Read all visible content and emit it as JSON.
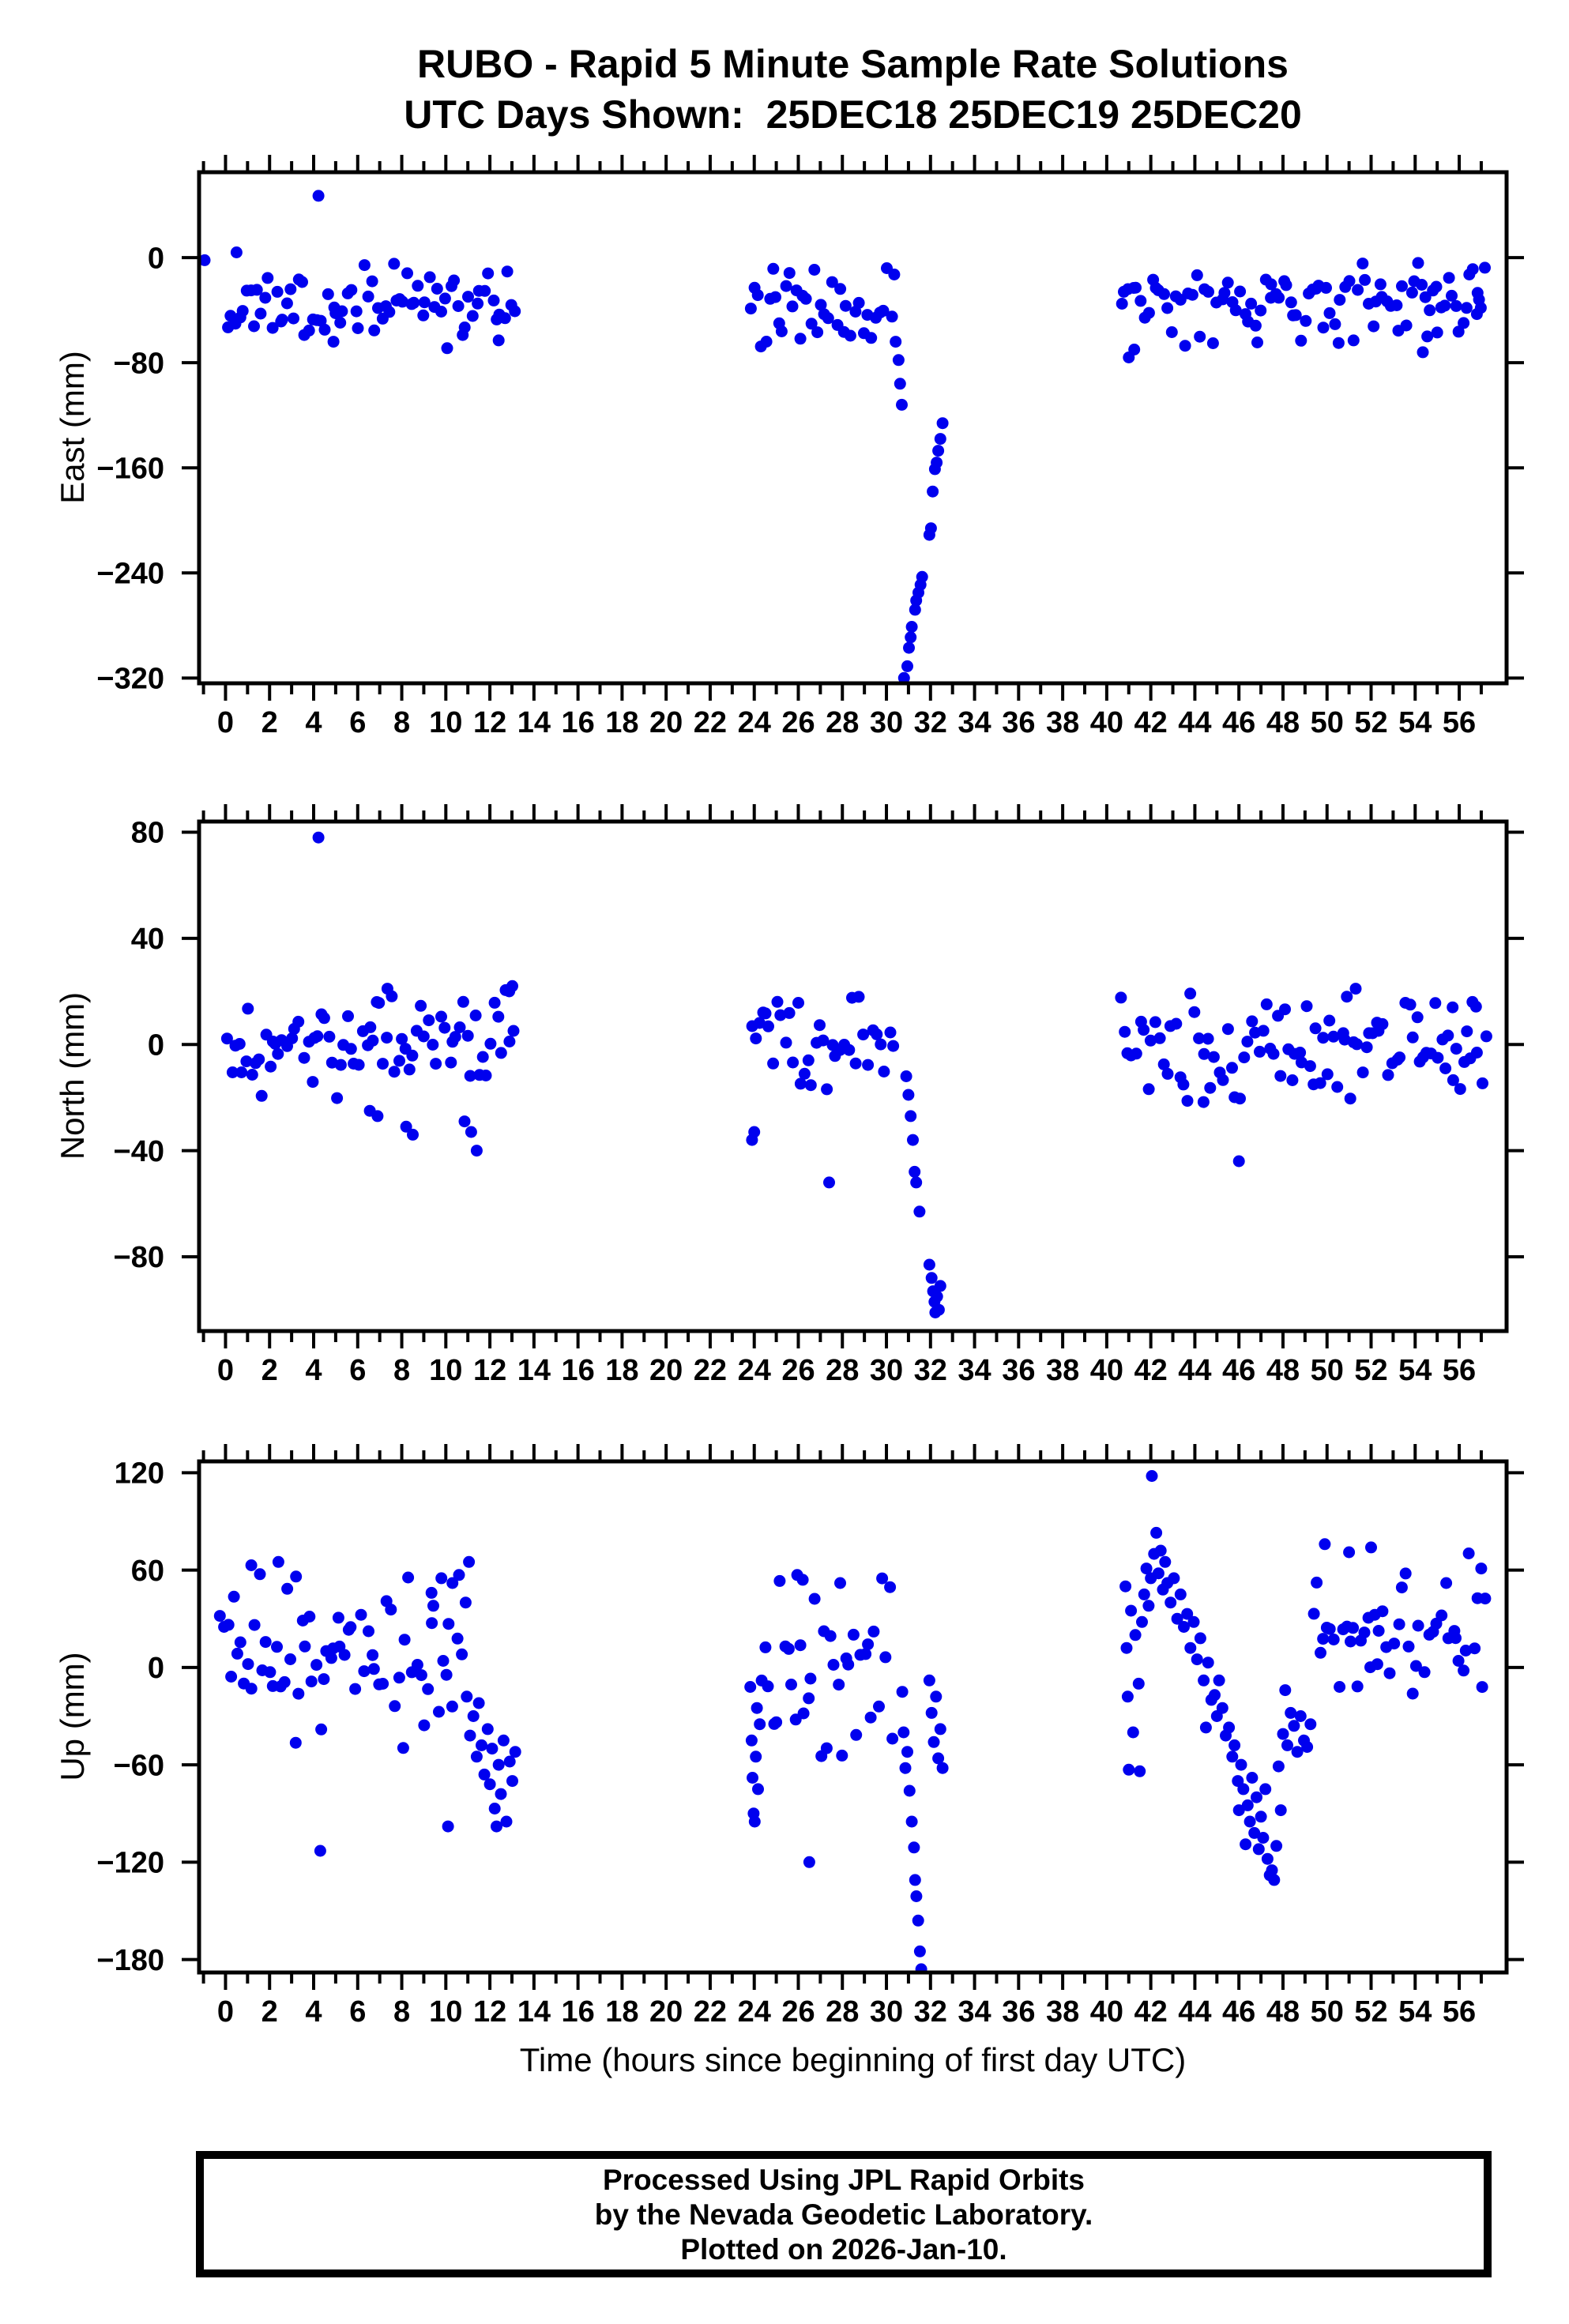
{
  "footer": {
    "lines": [
      "Processed Using JPL Rapid Orbits",
      "by the Nevada Geodetic Laboratory.",
      "Plotted on 2026-Jan-10."
    ]
  },
  "chart_data": {
    "type": "scatter",
    "title": "RUBO - Rapid 5 Minute Sample Rate Solutions",
    "subtitle": "UTC Days Shown:  25DEC18 25DEC19 25DEC20",
    "xlabel": "Time (hours since beginning of first day UTC)",
    "station": "RUBO",
    "utc_days": [
      "25DEC18",
      "25DEC19",
      "25DEC20"
    ],
    "xlim": [
      -1.2,
      58.15
    ],
    "x_major_tick_step_hours": 2,
    "x_minor_tick_step_hours": 1,
    "x_tick_labels": [
      0,
      2,
      4,
      6,
      8,
      10,
      12,
      14,
      16,
      18,
      20,
      22,
      24,
      26,
      28,
      30,
      32,
      34,
      36,
      38,
      40,
      42,
      44,
      46,
      48,
      50,
      52,
      54,
      56
    ],
    "grid": false,
    "legend": null,
    "marker": {
      "shape": "circle",
      "color": "#0000EE",
      "radius_px": 7.5
    },
    "frame_color": "#000000",
    "plots": [
      {
        "name": "east",
        "ylabel": "East (mm)",
        "ylim": [
          -324,
          65
        ],
        "yticks": [
          0,
          -80,
          -160,
          -240,
          -320
        ],
        "bands": [
          {
            "t0": 0.1,
            "t1": 13.22,
            "step": 0.17,
            "mean": -36,
            "sd": 15,
            "lo": -70,
            "hi": -4,
            "seed": 11
          },
          {
            "t0": 23.88,
            "t1": 30.38,
            "step": 0.17,
            "mean": -40,
            "sd": 15,
            "lo": -82,
            "hi": -6,
            "seed": 22
          },
          {
            "t0": 40.68,
            "t1": 57.28,
            "step": 0.17,
            "mean": -34,
            "sd": 15,
            "lo": -74,
            "hi": -2,
            "seed": 33
          }
        ],
        "points": [
          [
            -0.95,
            -2
          ],
          [
            0.5,
            4
          ],
          [
            4.22,
            47
          ],
          [
            4.9,
            -64
          ],
          [
            12.4,
            -63
          ],
          [
            30.42,
            -64
          ],
          [
            30.55,
            -78
          ],
          [
            30.62,
            -96
          ],
          [
            30.7,
            -112
          ],
          [
            30.8,
            -320
          ],
          [
            30.95,
            -311
          ],
          [
            31.02,
            -297
          ],
          [
            31.1,
            -289
          ],
          [
            31.15,
            -281
          ],
          [
            31.3,
            -268
          ],
          [
            31.35,
            -261
          ],
          [
            31.45,
            -255
          ],
          [
            31.55,
            -249
          ],
          [
            31.62,
            -243
          ],
          [
            31.95,
            -211
          ],
          [
            32.02,
            -206
          ],
          [
            32.1,
            -178
          ],
          [
            32.2,
            -161
          ],
          [
            32.28,
            -156
          ],
          [
            32.35,
            -147
          ],
          [
            32.45,
            -138
          ],
          [
            32.55,
            -126
          ],
          [
            41.0,
            -76
          ],
          [
            41.25,
            -70
          ],
          [
            54.35,
            -72
          ],
          [
            54.55,
            -60
          ],
          [
            55.0,
            -57
          ],
          [
            56.8,
            -43
          ],
          [
            56.9,
            -32
          ]
        ]
      },
      {
        "name": "north",
        "ylabel": "North (mm)",
        "ylim": [
          -108,
          84
        ],
        "yticks": [
          80,
          40,
          0,
          -40,
          -80
        ],
        "bands": [
          {
            "t0": 0.12,
            "t1": 13.22,
            "step": 0.17,
            "mean": -1,
            "sd": 10,
            "lo": -30,
            "hi": 22,
            "seed": 44
          },
          {
            "t0": 23.88,
            "t1": 30.38,
            "step": 0.17,
            "mean": -2,
            "sd": 10,
            "lo": -28,
            "hi": 20,
            "seed": 55
          },
          {
            "t0": 40.68,
            "t1": 57.28,
            "step": 0.17,
            "mean": -2,
            "sd": 10,
            "lo": -26,
            "hi": 22,
            "seed": 66
          }
        ],
        "points": [
          [
            4.22,
            78
          ],
          [
            6.55,
            -25
          ],
          [
            6.9,
            -27
          ],
          [
            7.35,
            21
          ],
          [
            8.2,
            -31
          ],
          [
            8.5,
            -34
          ],
          [
            10.85,
            -29
          ],
          [
            11.15,
            -33
          ],
          [
            11.4,
            -40
          ],
          [
            12.88,
            20
          ],
          [
            13.02,
            22
          ],
          [
            23.9,
            -36
          ],
          [
            24.0,
            -33
          ],
          [
            27.4,
            -52
          ],
          [
            30.9,
            -12
          ],
          [
            31.0,
            -19
          ],
          [
            31.1,
            -27
          ],
          [
            31.2,
            -36
          ],
          [
            31.28,
            -48
          ],
          [
            31.35,
            -52
          ],
          [
            31.5,
            -63
          ],
          [
            31.95,
            -83
          ],
          [
            32.05,
            -88
          ],
          [
            32.12,
            -93
          ],
          [
            32.18,
            -97
          ],
          [
            32.22,
            -101
          ],
          [
            32.3,
            -95
          ],
          [
            32.38,
            -100
          ],
          [
            32.45,
            -91
          ],
          [
            46.0,
            -44
          ],
          [
            50.9,
            18
          ],
          [
            51.3,
            21
          ],
          [
            55.7,
            14
          ],
          [
            56.6,
            16
          ]
        ]
      },
      {
        "name": "up",
        "ylabel": "Up (mm)",
        "ylim": [
          -188,
          127
        ],
        "yticks": [
          120,
          60,
          0,
          -60,
          -120,
          -180
        ],
        "bands": [
          {
            "t0": -0.28,
            "t1": 10.85,
            "step": 0.17,
            "mean": 4,
            "sd": 22,
            "lo": -52,
            "hi": 58,
            "seed": 77
          },
          {
            "t0": 24.35,
            "t1": 30.35,
            "step": 0.17,
            "mean": -2,
            "sd": 26,
            "lo": -70,
            "hi": 56,
            "seed": 88
          },
          {
            "t0": 49.4,
            "t1": 57.3,
            "step": 0.17,
            "mean": 22,
            "sd": 20,
            "lo": -30,
            "hi": 76,
            "seed": 99
          }
        ],
        "points": [
          [
            1.17,
            63
          ],
          [
            2.4,
            65
          ],
          [
            3.2,
            56
          ],
          [
            4.3,
            -113
          ],
          [
            9.35,
            46
          ],
          [
            9.8,
            55
          ],
          [
            10.1,
            -98
          ],
          [
            10.3,
            52
          ],
          [
            10.6,
            57
          ],
          [
            10.9,
            40
          ],
          [
            11.05,
            65
          ],
          [
            10.95,
            -18
          ],
          [
            11.1,
            -42
          ],
          [
            11.25,
            -30
          ],
          [
            11.4,
            -55
          ],
          [
            11.5,
            -22
          ],
          [
            11.62,
            -48
          ],
          [
            11.75,
            -66
          ],
          [
            11.9,
            -38
          ],
          [
            12.0,
            -72
          ],
          [
            12.1,
            -50
          ],
          [
            12.22,
            -87
          ],
          [
            12.3,
            -98
          ],
          [
            12.4,
            -60
          ],
          [
            12.5,
            -78
          ],
          [
            12.62,
            -45
          ],
          [
            12.75,
            -95
          ],
          [
            12.9,
            -58
          ],
          [
            13.02,
            -70
          ],
          [
            13.15,
            -52
          ],
          [
            23.82,
            -12
          ],
          [
            23.88,
            -45
          ],
          [
            23.92,
            -68
          ],
          [
            23.97,
            -90
          ],
          [
            24.02,
            -95
          ],
          [
            24.07,
            -55
          ],
          [
            24.12,
            -25
          ],
          [
            24.17,
            -75
          ],
          [
            24.25,
            -35
          ],
          [
            25.95,
            57
          ],
          [
            26.2,
            54
          ],
          [
            26.5,
            -120
          ],
          [
            27.9,
            52
          ],
          [
            30.72,
            -15
          ],
          [
            30.78,
            -40
          ],
          [
            30.86,
            -62
          ],
          [
            30.95,
            -52
          ],
          [
            31.05,
            -76
          ],
          [
            31.15,
            -95
          ],
          [
            31.25,
            -111
          ],
          [
            31.3,
            -131
          ],
          [
            31.36,
            -141
          ],
          [
            31.44,
            -156
          ],
          [
            31.52,
            -175
          ],
          [
            31.58,
            -186
          ],
          [
            31.95,
            -8
          ],
          [
            32.05,
            -28
          ],
          [
            32.15,
            -46
          ],
          [
            32.25,
            -18
          ],
          [
            32.35,
            -56
          ],
          [
            32.45,
            -38
          ],
          [
            32.55,
            -62
          ],
          [
            40.85,
            50
          ],
          [
            40.9,
            12
          ],
          [
            40.95,
            -18
          ],
          [
            41.0,
            -63
          ],
          [
            41.1,
            35
          ],
          [
            41.2,
            -40
          ],
          [
            41.3,
            20
          ],
          [
            41.45,
            -10
          ],
          [
            41.5,
            -64
          ],
          [
            41.6,
            28
          ],
          [
            41.7,
            45
          ],
          [
            41.8,
            61
          ],
          [
            41.9,
            38
          ],
          [
            42.0,
            55
          ],
          [
            42.05,
            118
          ],
          [
            42.15,
            70
          ],
          [
            42.25,
            83
          ],
          [
            42.35,
            58
          ],
          [
            42.45,
            72
          ],
          [
            42.55,
            48
          ],
          [
            42.65,
            65
          ],
          [
            42.75,
            52
          ],
          [
            42.9,
            40
          ],
          [
            43.05,
            55
          ],
          [
            43.2,
            30
          ],
          [
            43.35,
            45
          ],
          [
            43.5,
            25
          ],
          [
            43.65,
            33
          ],
          [
            43.8,
            12
          ],
          [
            43.95,
            28
          ],
          [
            44.1,
            5
          ],
          [
            44.25,
            18
          ],
          [
            44.4,
            -8
          ],
          [
            44.5,
            -37
          ],
          [
            44.6,
            3
          ],
          [
            44.75,
            -20
          ],
          [
            44.9,
            -17
          ],
          [
            45.0,
            -30
          ],
          [
            45.1,
            -8
          ],
          [
            45.25,
            -25
          ],
          [
            45.4,
            -42
          ],
          [
            45.55,
            -37
          ],
          [
            45.7,
            -55
          ],
          [
            45.8,
            -48
          ],
          [
            45.95,
            -70
          ],
          [
            46.0,
            -88
          ],
          [
            46.1,
            -60
          ],
          [
            46.2,
            -75
          ],
          [
            46.3,
            -109
          ],
          [
            46.4,
            -85
          ],
          [
            46.5,
            -95
          ],
          [
            46.6,
            -68
          ],
          [
            46.7,
            -102
          ],
          [
            46.8,
            -80
          ],
          [
            46.9,
            -112
          ],
          [
            47.0,
            -92
          ],
          [
            47.1,
            -105
          ],
          [
            47.2,
            -75
          ],
          [
            47.3,
            -118
          ],
          [
            47.4,
            -128
          ],
          [
            47.5,
            -125
          ],
          [
            47.6,
            -131
          ],
          [
            47.7,
            -110
          ],
          [
            47.8,
            -61
          ],
          [
            47.9,
            -88
          ],
          [
            48.0,
            -41
          ],
          [
            48.1,
            -14
          ],
          [
            48.2,
            -48
          ],
          [
            48.35,
            -28
          ],
          [
            48.5,
            -36
          ],
          [
            48.65,
            -52
          ],
          [
            48.8,
            -30
          ],
          [
            48.95,
            -45
          ],
          [
            49.1,
            -49
          ],
          [
            49.25,
            -35
          ],
          [
            49.9,
            76
          ],
          [
            51.0,
            71
          ],
          [
            52.0,
            74
          ],
          [
            57.0,
            61
          ]
        ]
      }
    ]
  }
}
